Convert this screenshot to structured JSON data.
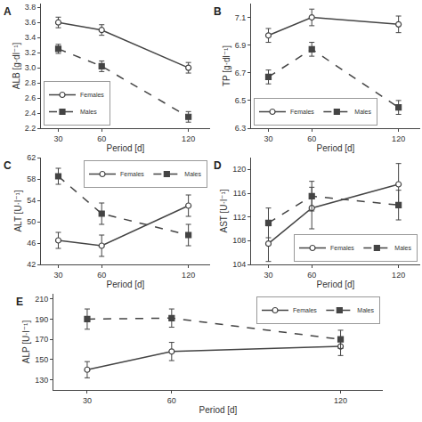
{
  "chart_data": [
    {
      "type": "line",
      "title": "A",
      "xlabel": "Period [d]",
      "ylabel": "ALB [g·dl⁻¹]",
      "x": [
        30,
        60,
        120
      ],
      "xlim": [
        18,
        135
      ],
      "xticks": [
        30,
        60,
        120
      ],
      "ylim": [
        2.2,
        3.85
      ],
      "yticks": [
        2.2,
        2.4,
        2.6,
        2.8,
        {
          "value": 3.0,
          "label": "3.0"
        },
        3.2,
        3.4,
        3.6,
        3.8
      ],
      "grid": false,
      "legend": "lower left",
      "series": [
        {
          "name": "Females",
          "color": "#444444",
          "marker": "circle-open",
          "line_style": "solid",
          "values": [
            3.6,
            3.5,
            3.0
          ],
          "errors": [
            0.07,
            0.07,
            0.07
          ]
        },
        {
          "name": "Males",
          "color": "#444444",
          "marker": "square",
          "line_style": "dashed",
          "values": [
            3.25,
            3.02,
            2.35
          ],
          "errors": [
            0.06,
            0.07,
            0.07
          ]
        }
      ]
    },
    {
      "type": "line",
      "title": "B",
      "xlabel": "Period [d]",
      "ylabel": "TP [g·dl⁻¹]",
      "x": [
        30,
        60,
        120
      ],
      "xlim": [
        18,
        135
      ],
      "xticks": [
        30,
        60,
        120
      ],
      "ylim": [
        6.3,
        7.2
      ],
      "yticks": [
        6.3,
        6.5,
        6.7,
        6.9,
        7.1
      ],
      "grid": false,
      "legend": "lower left",
      "series": [
        {
          "name": "Females",
          "color": "#444444",
          "marker": "circle-open",
          "line_style": "solid",
          "values": [
            6.97,
            7.1,
            7.05
          ],
          "errors": [
            0.05,
            0.06,
            0.06
          ]
        },
        {
          "name": "Males",
          "color": "#444444",
          "marker": "square",
          "line_style": "dashed",
          "values": [
            6.67,
            6.87,
            6.45
          ],
          "errors": [
            0.05,
            0.05,
            0.05
          ]
        }
      ]
    },
    {
      "type": "line",
      "title": "C",
      "xlabel": "Period [d]",
      "ylabel": "ALT [U·l⁻¹]",
      "x": [
        30,
        60,
        120
      ],
      "xlim": [
        18,
        135
      ],
      "xticks": [
        30,
        60,
        120
      ],
      "ylim": [
        42,
        62
      ],
      "yticks": [
        42,
        46,
        50,
        54,
        58,
        62
      ],
      "grid": false,
      "legend": "upper right",
      "series": [
        {
          "name": "Females",
          "color": "#444444",
          "marker": "circle-open",
          "line_style": "solid",
          "values": [
            46.5,
            45.5,
            53.0
          ],
          "errors": [
            1.5,
            2.0,
            2.0
          ]
        },
        {
          "name": "Males",
          "color": "#444444",
          "marker": "square",
          "line_style": "dashed",
          "values": [
            58.5,
            51.5,
            47.5
          ],
          "errors": [
            1.5,
            2.0,
            2.0
          ]
        }
      ]
    },
    {
      "type": "line",
      "title": "D",
      "xlabel": "Period [d]",
      "ylabel": "AST [U·l⁻¹]",
      "x": [
        30,
        60,
        120
      ],
      "xlim": [
        18,
        135
      ],
      "xticks": [
        30,
        60,
        120
      ],
      "ylim": [
        104,
        122
      ],
      "yticks": [
        104,
        108,
        112,
        116,
        120
      ],
      "grid": false,
      "legend": "lower right",
      "series": [
        {
          "name": "Females",
          "color": "#444444",
          "marker": "circle-open",
          "line_style": "solid",
          "values": [
            107.5,
            113.5,
            117.5
          ],
          "errors": [
            3.0,
            3.5,
            3.5
          ]
        },
        {
          "name": "Males",
          "color": "#444444",
          "marker": "square",
          "line_style": "dashed",
          "values": [
            111.0,
            115.5,
            114.0
          ],
          "errors": [
            2.5,
            2.5,
            2.5
          ]
        }
      ]
    },
    {
      "type": "line",
      "title": "E",
      "xlabel": "Period [d]",
      "ylabel": "ALP [U·l⁻¹]",
      "x": [
        30,
        60,
        120
      ],
      "xlim": [
        18,
        135
      ],
      "xticks": [
        30,
        60,
        120
      ],
      "ylim": [
        120,
        215
      ],
      "yticks": [
        130,
        150,
        170,
        190,
        210
      ],
      "grid": false,
      "legend": "upper right",
      "series": [
        {
          "name": "Females",
          "color": "#444444",
          "marker": "circle-open",
          "line_style": "solid",
          "values": [
            140.0,
            158.0,
            163.0
          ],
          "errors": [
            8.0,
            9.0,
            9.0
          ]
        },
        {
          "name": "Males",
          "color": "#444444",
          "marker": "square",
          "line_style": "dashed",
          "values": [
            190.0,
            191.0,
            170.0
          ],
          "errors": [
            10.0,
            9.0,
            9.0
          ]
        }
      ]
    }
  ]
}
